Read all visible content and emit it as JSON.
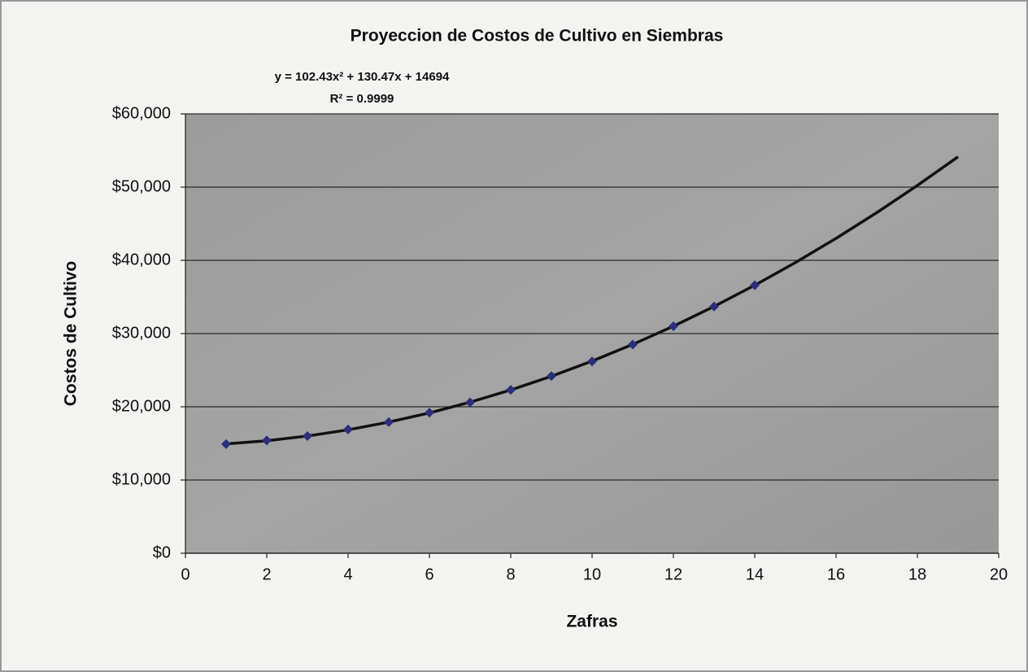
{
  "chart_data": {
    "type": "scatter",
    "title": "Proyeccion de Costos de Cultivo en Siembras",
    "equation": "y = 102.43x² + 130.47x + 14694",
    "r_squared": "R² = 0.9999",
    "x_label": "Zafras",
    "y_label": "Costos de Cultivo",
    "x": [
      1,
      2,
      3,
      4,
      5,
      6,
      7,
      8,
      9,
      10,
      11,
      12,
      13,
      14
    ],
    "values": [
      14900,
      15400,
      16000,
      16900,
      17900,
      19200,
      20600,
      22300,
      24200,
      26200,
      28500,
      31000,
      33700,
      36600
    ],
    "color": "#2b2f7a",
    "trendline": {
      "color": "#111111",
      "x": [
        1,
        2,
        3,
        4,
        5,
        6,
        7,
        8,
        9,
        10,
        11,
        12,
        13,
        14,
        15,
        16,
        17,
        18,
        19
      ],
      "values": [
        14927,
        15365,
        16007,
        16855,
        17907,
        19164,
        20626,
        22293,
        24165,
        26242,
        28523,
        31010,
        33701,
        36597,
        39698,
        43004,
        46514,
        50230,
        54150
      ]
    },
    "xlim": [
      0,
      20
    ],
    "xticks": [
      0,
      2,
      4,
      6,
      8,
      10,
      12,
      14,
      16,
      18,
      20
    ],
    "ylim": [
      0,
      60000
    ],
    "yticks": [
      {
        "value": 0,
        "label": "$0"
      },
      {
        "value": 10000,
        "label": "$10,000"
      },
      {
        "value": 20000,
        "label": "$20,000"
      },
      {
        "value": 30000,
        "label": "$30,000"
      },
      {
        "value": 40000,
        "label": "$40,000"
      },
      {
        "value": 50000,
        "label": "$50,000"
      },
      {
        "value": 60000,
        "label": "$60,000"
      }
    ],
    "grid": true
  }
}
